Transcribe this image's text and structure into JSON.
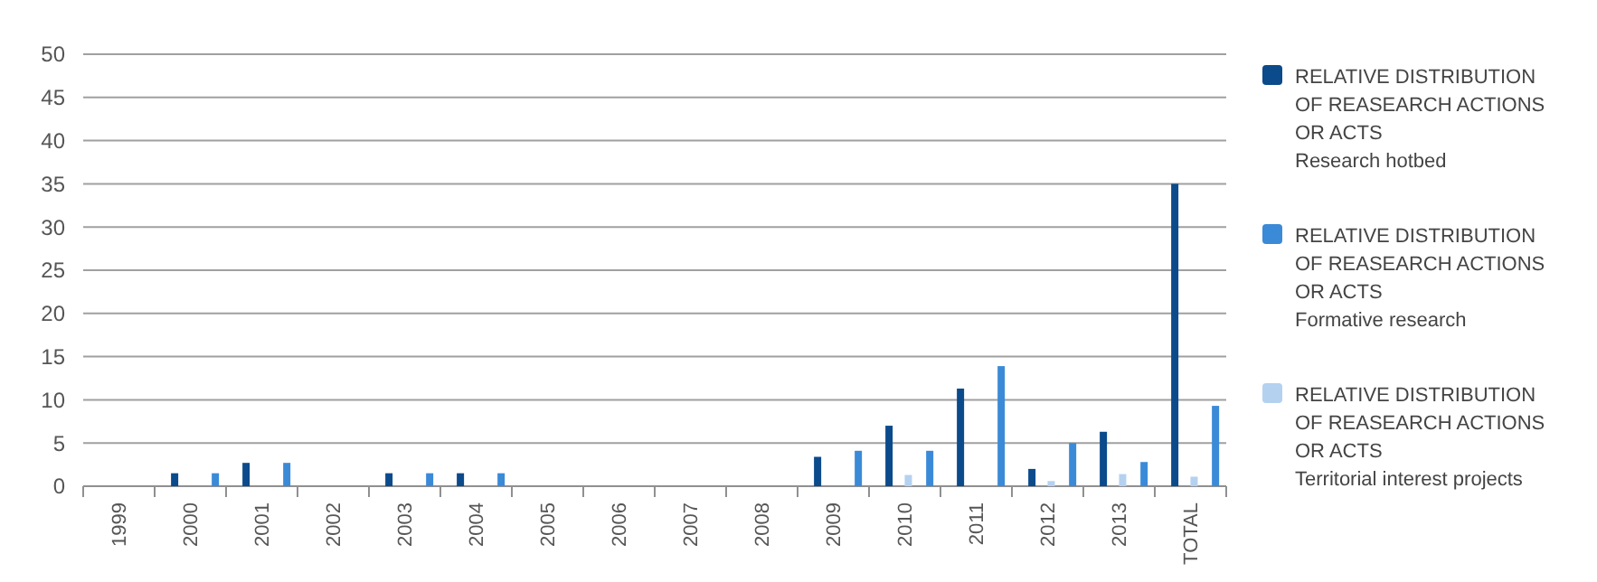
{
  "chart_data": {
    "type": "bar",
    "categories": [
      "1999",
      "2000",
      "2001",
      "2002",
      "2003",
      "2004",
      "2005",
      "2006",
      "2007",
      "2008",
      "2009",
      "2010",
      "2011",
      "2012",
      "2013",
      "TOTAL"
    ],
    "series": [
      {
        "name": "RELATIVE DISTRIBUTION\nOF REASEARCH ACTIONS\nOR ACTS\nResearch hotbed",
        "color": "#0b4a8b",
        "values": [
          0,
          1.5,
          2.7,
          0,
          1.5,
          1.5,
          0,
          0,
          0,
          0,
          3.4,
          7,
          11.3,
          2,
          6.3,
          35
        ]
      },
      {
        "name": "RELATIVE DISTRIBUTION\nOF REASEARCH ACTIONS\nOR ACTS\nFormative research",
        "color": "#3a8ad8",
        "values": [
          0,
          1.5,
          2.7,
          0,
          1.5,
          1.5,
          0,
          0,
          0,
          0,
          4.1,
          4.1,
          13.9,
          5,
          2.8,
          9.3
        ]
      },
      {
        "name": "RELATIVE DISTRIBUTION\nOF REASEARCH ACTIONS\nOR ACTS\nTerritorial interest projects",
        "color": "#b5d1f0",
        "values": [
          0,
          0,
          0,
          0,
          0,
          0,
          0,
          0,
          0,
          0,
          0,
          1.3,
          0,
          0.6,
          1.4,
          1.1
        ]
      }
    ],
    "ylim": [
      0,
      50
    ],
    "yticks": [
      0,
      5,
      10,
      15,
      20,
      25,
      30,
      35,
      40,
      45,
      50
    ],
    "grid": "y",
    "legend": "right"
  }
}
